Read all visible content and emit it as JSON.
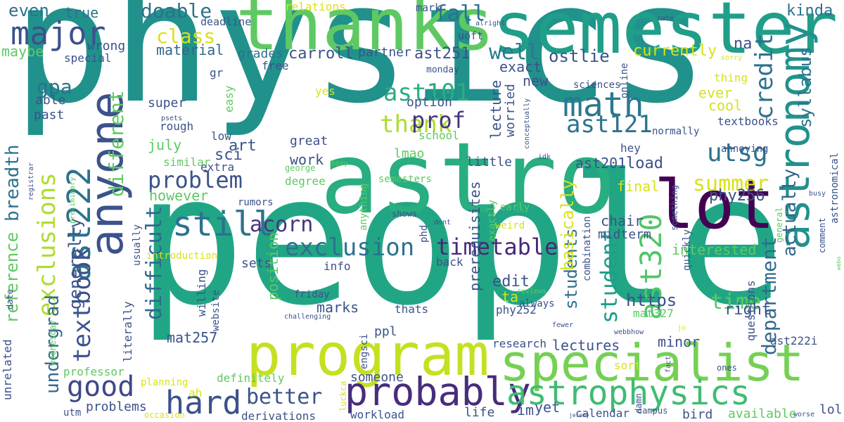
{
  "palette": {
    "dark_purple": "#440154",
    "indigo": "#3b528b",
    "teal_blue": "#2c728e",
    "teal": "#21918c",
    "sea_green": "#28ae80",
    "green": "#5ec962",
    "lime": "#addc30",
    "yellow": "#d8e219"
  },
  "words": [
    {
      "text": "physics",
      "c": "#21918c"
    },
    {
      "text": "people",
      "c": "#21a685"
    },
    {
      "text": "astro",
      "c": "#28ae80"
    },
    {
      "text": "semester",
      "c": "#1f9e89"
    },
    {
      "text": "thanks",
      "c": "#5ec962"
    },
    {
      "text": "astronomy",
      "c": "#21918c"
    },
    {
      "text": "program",
      "c": "#c5e021"
    },
    {
      "text": "specialist",
      "c": "#75d054"
    },
    {
      "text": "lot",
      "c": "#440154"
    },
    {
      "text": "anyone",
      "c": "#3b528b"
    },
    {
      "text": "probably",
      "c": "#472d7b"
    },
    {
      "text": "astrophysics",
      "c": "#3fbc73"
    },
    {
      "text": "major",
      "c": "#3b528b"
    },
    {
      "text": "math",
      "c": "#2a788e"
    },
    {
      "text": "still",
      "c": "#2c728e"
    },
    {
      "text": "hard",
      "c": "#3b528b"
    },
    {
      "text": "good",
      "c": "#3e4989"
    },
    {
      "text": "exclusions",
      "c": "#addc30"
    },
    {
      "text": "ast222",
      "c": "#2c728e"
    },
    {
      "text": "ast320",
      "c": "#52c569"
    },
    {
      "text": "department",
      "c": "#31688e"
    },
    {
      "text": "exclusion",
      "c": "#2c728e"
    },
    {
      "text": "timetable",
      "c": "#482878"
    },
    {
      "text": "ast101",
      "c": "#28ae80"
    },
    {
      "text": "ast121",
      "c": "#2c728e"
    },
    {
      "text": "thank",
      "c": "#addc30"
    },
    {
      "text": "student",
      "c": "#1f9e89"
    },
    {
      "text": "students",
      "c": "#2c728e"
    },
    {
      "text": "credit",
      "c": "#2c728e"
    },
    {
      "text": "actually",
      "c": "#31688e"
    },
    {
      "text": "undergrad",
      "c": "#31688e"
    },
    {
      "text": "textbook",
      "c": "#3b528b"
    },
    {
      "text": "breadth",
      "c": "#2c728e"
    },
    {
      "text": "difficult",
      "c": "#31688e"
    },
    {
      "text": "different",
      "c": "#5ec962"
    },
    {
      "text": "problem",
      "c": "#3b528b"
    },
    {
      "text": "acorn",
      "c": "#46337f"
    },
    {
      "text": "prof",
      "c": "#46337f"
    },
    {
      "text": "utsg",
      "c": "#2c728e"
    },
    {
      "text": "summer",
      "c": "#d8e219"
    },
    {
      "text": "better",
      "c": "#3b528b"
    },
    {
      "text": "doable",
      "c": "#2c728e"
    },
    {
      "text": "fall",
      "c": "#2c728e"
    },
    {
      "text": "well",
      "c": "#2a788e"
    },
    {
      "text": "class",
      "c": "#d8e219"
    },
    {
      "text": "time",
      "c": "#5ec962"
    },
    {
      "text": "reference",
      "c": "#5ec962"
    },
    {
      "text": "generally",
      "c": "#3b528b"
    },
    {
      "text": "basically",
      "c": "#d8e219"
    },
    {
      "text": "even",
      "c": "#2c728e"
    },
    {
      "text": "true",
      "c": "#2c728e"
    },
    {
      "text": "maybe",
      "c": "#5ec962"
    },
    {
      "text": "wrong",
      "c": "#3b528b"
    },
    {
      "text": "special",
      "c": "#3b528b"
    },
    {
      "text": "relations",
      "c": "#d8e219"
    },
    {
      "text": "deadline",
      "c": "#3b528b"
    },
    {
      "text": "mark",
      "c": "#3b528b"
    },
    {
      "text": "alright",
      "c": "#3b528b"
    },
    {
      "text": "uoft",
      "c": "#3b528b"
    },
    {
      "text": "rate",
      "c": "#3b528b"
    },
    {
      "text": "na",
      "c": "#3b528b"
    },
    {
      "text": "kinda",
      "c": "#2c728e"
    },
    {
      "text": "syllabus",
      "c": "#2c728e"
    },
    {
      "text": "sorry",
      "c": "#d8e219"
    },
    {
      "text": "material",
      "c": "#31688e"
    },
    {
      "text": "grades",
      "c": "#2c728e"
    },
    {
      "text": "carroll",
      "c": "#3b528b"
    },
    {
      "text": "partner",
      "c": "#3b528b"
    },
    {
      "text": "ast251",
      "c": "#3b528b"
    },
    {
      "text": "ostlie",
      "c": "#3b528b"
    },
    {
      "text": "currently",
      "c": "#d8e219"
    },
    {
      "text": "free",
      "c": "#3b528b"
    },
    {
      "text": "monday",
      "c": "#3b528b"
    },
    {
      "text": "exact",
      "c": "#3b528b"
    },
    {
      "text": "thing",
      "c": "#d8e219"
    },
    {
      "text": "gpa",
      "c": "#2c728e"
    },
    {
      "text": "gr",
      "c": "#3b528b"
    },
    {
      "text": "yes",
      "c": "#d8e219"
    },
    {
      "text": "new",
      "c": "#3b528b"
    },
    {
      "text": "ever",
      "c": "#d8e219"
    },
    {
      "text": "cool",
      "c": "#d8e219"
    },
    {
      "text": "past",
      "c": "#3b528b"
    },
    {
      "text": "able",
      "c": "#3b528b"
    },
    {
      "text": "super",
      "c": "#3b528b"
    },
    {
      "text": "easy",
      "c": "#5ec962"
    },
    {
      "text": "option",
      "c": "#3b528b"
    },
    {
      "text": "sciences",
      "c": "#3b528b"
    },
    {
      "text": "online",
      "c": "#3b528b"
    },
    {
      "text": "lecture",
      "c": "#3b528b"
    },
    {
      "text": "worried",
      "c": "#3b528b"
    },
    {
      "text": "conceptually",
      "c": "#3b528b"
    },
    {
      "text": "psets",
      "c": "#3b528b"
    },
    {
      "text": "rough",
      "c": "#3b528b"
    },
    {
      "text": "low",
      "c": "#3b528b"
    },
    {
      "text": "school",
      "c": "#5ec962"
    },
    {
      "text": "normally",
      "c": "#3b528b"
    },
    {
      "text": "textbooks",
      "c": "#3b528b"
    },
    {
      "text": "july",
      "c": "#5ec962"
    },
    {
      "text": "art",
      "c": "#3b528b"
    },
    {
      "text": "great",
      "c": "#3b528b"
    },
    {
      "text": "hey",
      "c": "#3b528b"
    },
    {
      "text": "annoying",
      "c": "#3b528b"
    },
    {
      "text": "sci",
      "c": "#3b528b"
    },
    {
      "text": "work",
      "c": "#3b528b"
    },
    {
      "text": "lmao",
      "c": "#5ec962"
    },
    {
      "text": "idk",
      "c": "#3b528b"
    },
    {
      "text": "similar",
      "c": "#5ec962"
    },
    {
      "text": "extra",
      "c": "#3b528b"
    },
    {
      "text": "degree",
      "c": "#5ec962"
    },
    {
      "text": "semesters",
      "c": "#5ec962"
    },
    {
      "text": "bovy",
      "c": "#5ec962"
    },
    {
      "text": "little",
      "c": "#3b528b"
    },
    {
      "text": "ast201",
      "c": "#3b528b"
    },
    {
      "text": "load",
      "c": "#3b528b"
    },
    {
      "text": "astronomical",
      "c": "#3b528b"
    },
    {
      "text": "busy",
      "c": "#3b528b"
    },
    {
      "text": "registrar",
      "c": "#3b528b"
    },
    {
      "text": "preliminary",
      "c": "#5ec962"
    },
    {
      "text": "george",
      "c": "#5ec962"
    },
    {
      "text": "anything",
      "c": "#5ec962"
    },
    {
      "text": "phy256",
      "c": "#3b528b"
    },
    {
      "text": "however",
      "c": "#5ec962"
    },
    {
      "text": "shows",
      "c": "#3b528b"
    },
    {
      "text": "rumors",
      "c": "#3b528b"
    },
    {
      "text": "final",
      "c": "#d8e219"
    },
    {
      "text": "early",
      "c": "#5ec962"
    },
    {
      "text": "general",
      "c": "#5ec962"
    },
    {
      "text": "dont",
      "c": "#3b528b"
    },
    {
      "text": "weird",
      "c": "#d8e219"
    },
    {
      "text": "exactly",
      "c": "#5ec962"
    },
    {
      "text": "chair",
      "c": "#3b528b"
    },
    {
      "text": "midterm",
      "c": "#3b528b"
    },
    {
      "text": "something",
      "c": "#3b528b"
    },
    {
      "text": "comment",
      "c": "#3b528b"
    },
    {
      "text": "interested",
      "c": "#5ec962"
    },
    {
      "text": "usually",
      "c": "#3b528b"
    },
    {
      "text": "introduction",
      "c": "#d8e219"
    },
    {
      "text": "info",
      "c": "#3b528b"
    },
    {
      "text": "phd",
      "c": "#3b528b"
    },
    {
      "text": "sets",
      "c": "#3b528b"
    },
    {
      "text": "position",
      "c": "#5ec962"
    },
    {
      "text": "prerequisites",
      "c": "#3b528b"
    },
    {
      "text": "back",
      "c": "#3b528b"
    },
    {
      "text": "quickly",
      "c": "#3b528b"
    },
    {
      "text": "webo",
      "c": "#5ec962"
    },
    {
      "text": "https",
      "c": "#3b528b"
    },
    {
      "text": "edit",
      "c": "#3b528b"
    },
    {
      "text": "ta",
      "c": "#d8e219"
    },
    {
      "text": "combination",
      "c": "#3b528b"
    },
    {
      "text": "right",
      "c": "#3b528b"
    },
    {
      "text": "questions",
      "c": "#3b528b"
    },
    {
      "text": "friday",
      "c": "#3b528b"
    },
    {
      "text": "phy252",
      "c": "#3b528b"
    },
    {
      "text": "reviews",
      "c": "#5ec962"
    },
    {
      "text": "mat327",
      "c": "#5ec962"
    },
    {
      "text": "marks",
      "c": "#3b528b"
    },
    {
      "text": "challenging",
      "c": "#3b528b"
    },
    {
      "text": "willing",
      "c": "#3b528b"
    },
    {
      "text": "website",
      "c": "#3b528b"
    },
    {
      "text": "always",
      "c": "#3b528b"
    },
    {
      "text": "fewer",
      "c": "#3b528b"
    },
    {
      "text": "webbhow",
      "c": "#3b528b"
    },
    {
      "text": "jo",
      "c": "#d8e219"
    },
    {
      "text": "date",
      "c": "#3b528b"
    },
    {
      "text": "wednesday",
      "c": "#5ec962"
    },
    {
      "text": "literally",
      "c": "#3b528b"
    },
    {
      "text": "mat257",
      "c": "#3b528b"
    },
    {
      "text": "thats",
      "c": "#3b528b"
    },
    {
      "text": "ppl",
      "c": "#3b528b"
    },
    {
      "text": "lectures",
      "c": "#3b528b"
    },
    {
      "text": "minor",
      "c": "#3b528b"
    },
    {
      "text": "ast222i",
      "c": "#3b528b"
    },
    {
      "text": "fact",
      "c": "#3b528b"
    },
    {
      "text": "unrelated",
      "c": "#3b528b"
    },
    {
      "text": "professor",
      "c": "#5ec962"
    },
    {
      "text": "research",
      "c": "#3b528b"
    },
    {
      "text": "engsci",
      "c": "#3b528b"
    },
    {
      "text": "someone",
      "c": "#3b528b"
    },
    {
      "text": "sort",
      "c": "#d8e219"
    },
    {
      "text": "ones",
      "c": "#3b528b"
    },
    {
      "text": "definitely",
      "c": "#5ec962"
    },
    {
      "text": "planning",
      "c": "#d8e219"
    },
    {
      "text": "ah",
      "c": "#d8e219"
    },
    {
      "text": "luckca",
      "c": "#d8e219"
    },
    {
      "text": "damn",
      "c": "#3b528b"
    },
    {
      "text": "problems",
      "c": "#3b528b"
    },
    {
      "text": "im",
      "c": "#3b528b"
    },
    {
      "text": "yet",
      "c": "#3b528b"
    },
    {
      "text": "bird",
      "c": "#3b528b"
    },
    {
      "text": "available",
      "c": "#5ec962"
    },
    {
      "text": "lol",
      "c": "#3b528b"
    },
    {
      "text": "utm",
      "c": "#3b528b"
    },
    {
      "text": "occasion",
      "c": "#d8e219"
    },
    {
      "text": "derivations",
      "c": "#3b528b"
    },
    {
      "text": "workload",
      "c": "#3b528b"
    },
    {
      "text": "life",
      "c": "#3b528b"
    },
    {
      "text": "calendar",
      "c": "#3b528b"
    },
    {
      "text": "campus",
      "c": "#3b528b"
    },
    {
      "text": "jeremy",
      "c": "#3b528b"
    },
    {
      "text": "worse",
      "c": "#3b528b"
    }
  ]
}
